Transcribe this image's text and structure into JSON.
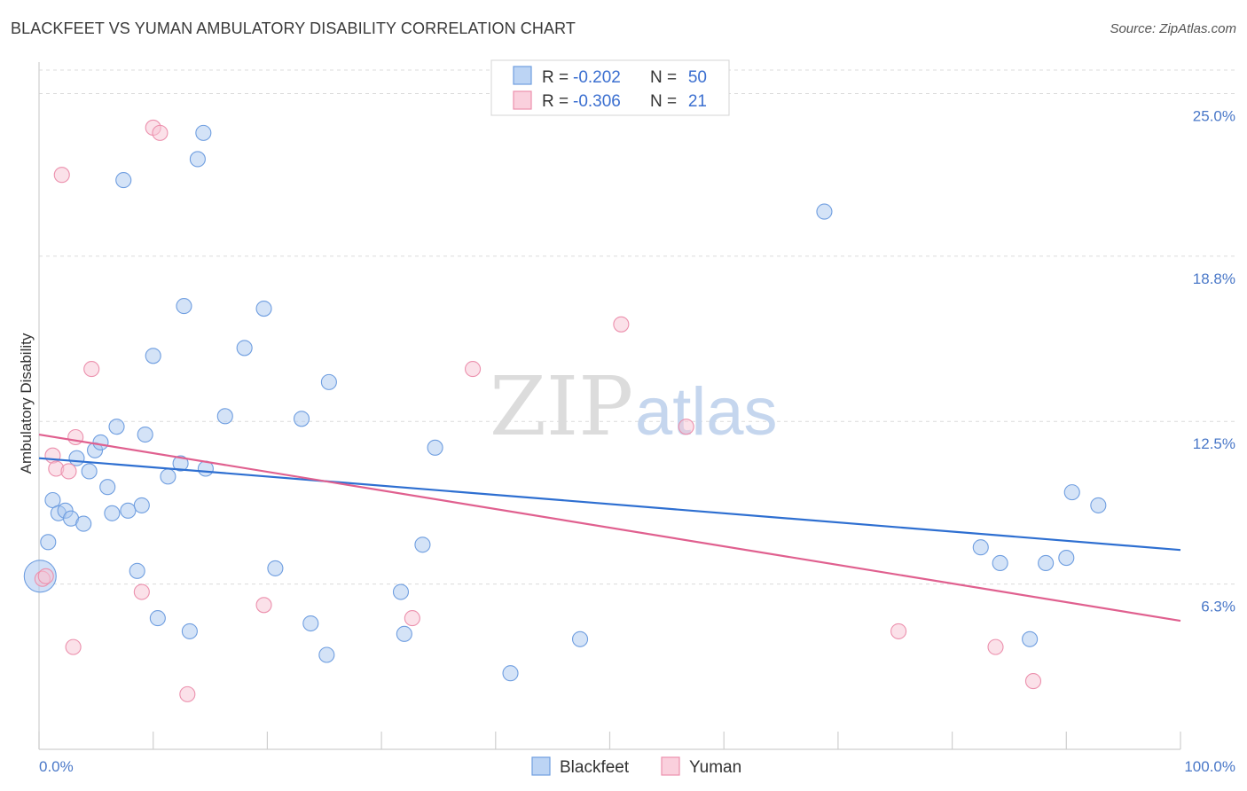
{
  "header": {
    "title": "BLACKFEET VS YUMAN AMBULATORY DISABILITY CORRELATION CHART",
    "source": "Source: ZipAtlas.com"
  },
  "watermark": {
    "zip": "ZIP",
    "atlas": "atlas"
  },
  "chart_data": {
    "type": "scatter",
    "ylabel": "Ambulatory Disability",
    "xlabel": "",
    "xlim": [
      0,
      100
    ],
    "ylim": [
      0,
      26.2
    ],
    "x_tick_labels": [
      {
        "value": 0,
        "label": "0.0%"
      },
      {
        "value": 100,
        "label": "100.0%"
      }
    ],
    "y_tick_labels": [
      {
        "value": 6.3,
        "label": "6.3%"
      },
      {
        "value": 12.5,
        "label": "12.5%"
      },
      {
        "value": 18.8,
        "label": "18.8%"
      },
      {
        "value": 25.0,
        "label": "25.0%"
      }
    ],
    "grid": true,
    "legend_position": "top-center",
    "stats": [
      {
        "r_label": "R =",
        "r_value": "-0.202",
        "n_label": "N =",
        "n_value": "50"
      },
      {
        "r_label": "R =",
        "r_value": "-0.306",
        "n_label": "N =",
        "n_value": "21"
      }
    ],
    "series": [
      {
        "name": "Blackfeet",
        "color": "#a9c7f0",
        "stroke": "#6f9ee0",
        "trend_color": "#2e6fd1",
        "trend": [
          [
            0,
            11.1
          ],
          [
            100,
            7.6
          ]
        ],
        "points": [
          [
            0.1,
            6.6
          ],
          [
            0.8,
            7.9
          ],
          [
            1.2,
            9.5
          ],
          [
            1.7,
            9.0
          ],
          [
            2.3,
            9.1
          ],
          [
            2.8,
            8.8
          ],
          [
            3.3,
            11.1
          ],
          [
            3.9,
            8.6
          ],
          [
            4.4,
            10.6
          ],
          [
            4.9,
            11.4
          ],
          [
            5.4,
            11.7
          ],
          [
            6.0,
            10.0
          ],
          [
            6.4,
            9.0
          ],
          [
            6.8,
            12.3
          ],
          [
            7.4,
            21.7
          ],
          [
            7.8,
            9.1
          ],
          [
            8.6,
            6.8
          ],
          [
            9.0,
            9.3
          ],
          [
            9.3,
            12.0
          ],
          [
            10.0,
            15.0
          ],
          [
            10.4,
            5.0
          ],
          [
            11.3,
            10.4
          ],
          [
            12.4,
            10.9
          ],
          [
            12.7,
            16.9
          ],
          [
            13.2,
            4.5
          ],
          [
            13.9,
            22.5
          ],
          [
            14.4,
            23.5
          ],
          [
            14.6,
            10.7
          ],
          [
            16.3,
            12.7
          ],
          [
            18.0,
            15.3
          ],
          [
            19.7,
            16.8
          ],
          [
            20.7,
            6.9
          ],
          [
            23.0,
            12.6
          ],
          [
            23.8,
            4.8
          ],
          [
            25.2,
            3.6
          ],
          [
            25.4,
            14.0
          ],
          [
            31.7,
            6.0
          ],
          [
            32.0,
            4.4
          ],
          [
            33.6,
            7.8
          ],
          [
            34.7,
            11.5
          ],
          [
            41.3,
            2.9
          ],
          [
            47.4,
            4.2
          ],
          [
            68.8,
            20.5
          ],
          [
            82.5,
            7.7
          ],
          [
            84.2,
            7.1
          ],
          [
            86.8,
            4.2
          ],
          [
            88.2,
            7.1
          ],
          [
            90.0,
            7.3
          ],
          [
            90.5,
            9.8
          ],
          [
            92.8,
            9.3
          ]
        ]
      },
      {
        "name": "Yuman",
        "color": "#f8c4d4",
        "stroke": "#ec90ad",
        "trend_color": "#e0608f",
        "trend": [
          [
            0,
            12.0
          ],
          [
            100,
            4.9
          ]
        ],
        "points": [
          [
            0.3,
            6.5
          ],
          [
            0.6,
            6.6
          ],
          [
            1.2,
            11.2
          ],
          [
            1.5,
            10.7
          ],
          [
            2.0,
            21.9
          ],
          [
            2.6,
            10.6
          ],
          [
            3.0,
            3.9
          ],
          [
            3.2,
            11.9
          ],
          [
            4.6,
            14.5
          ],
          [
            9.0,
            6.0
          ],
          [
            10.0,
            23.7
          ],
          [
            10.6,
            23.5
          ],
          [
            13.0,
            2.1
          ],
          [
            19.7,
            5.5
          ],
          [
            32.7,
            5.0
          ],
          [
            38.0,
            14.5
          ],
          [
            51.0,
            16.2
          ],
          [
            56.7,
            12.3
          ],
          [
            75.3,
            4.5
          ],
          [
            83.8,
            3.9
          ],
          [
            87.1,
            2.6
          ]
        ]
      }
    ]
  }
}
